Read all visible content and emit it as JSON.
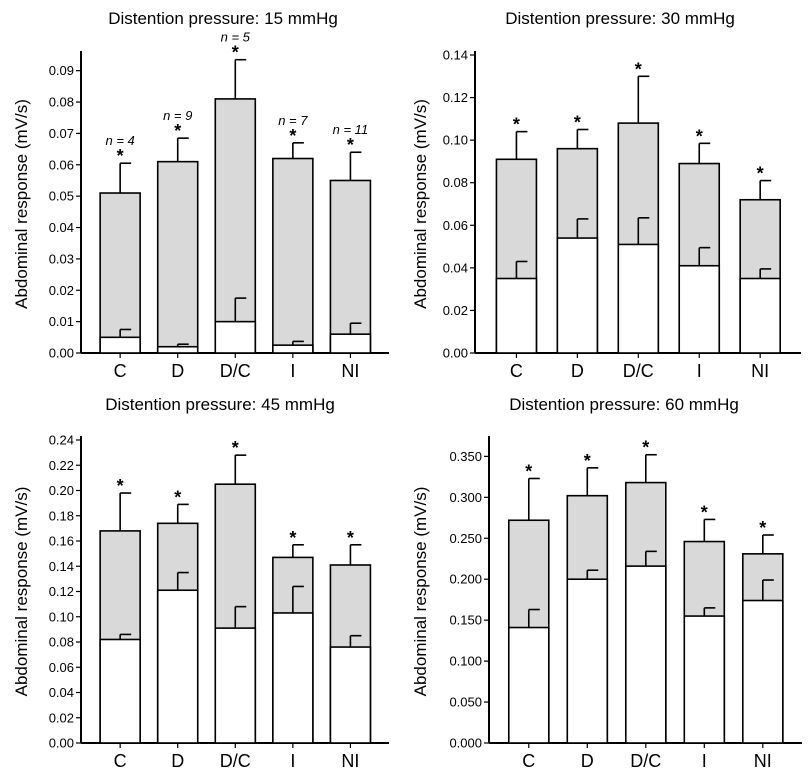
{
  "colors": {
    "stimulated_fill": "#d9d9d9",
    "baseline_fill": "#ffffff",
    "stroke": "#000000"
  },
  "chart_data": [
    {
      "type": "bar",
      "title": "Distention pressure: 15 mmHg",
      "ylabel": "Abdominal response (mV/s)",
      "categories": [
        "C",
        "D",
        "D/C",
        "I",
        "NI"
      ],
      "ylim": [
        0,
        0.095
      ],
      "yticks": [
        "0.00",
        "0.01",
        "0.02",
        "0.03",
        "0.04",
        "0.05",
        "0.06",
        "0.07",
        "0.08",
        "0.09"
      ],
      "sample_sizes": [
        "n = 4",
        "n = 9",
        "n = 5",
        "n = 7",
        "n = 11"
      ],
      "significance": [
        "*",
        "*",
        "*",
        "*",
        "*"
      ],
      "series": [
        {
          "values": [
            0.051,
            0.061,
            0.081,
            0.062,
            0.055
          ],
          "errors": [
            0.0095,
            0.0075,
            0.0125,
            0.005,
            0.009
          ]
        },
        {
          "values": [
            0.005,
            0.002,
            0.01,
            0.0025,
            0.006
          ],
          "errors": [
            0.0025,
            0.0008,
            0.0075,
            0.0012,
            0.0035
          ]
        }
      ]
    },
    {
      "type": "bar",
      "title": "Distention pressure: 30 mmHg",
      "ylabel": "Abdominal response (mV/s)",
      "categories": [
        "C",
        "D",
        "D/C",
        "I",
        "NI"
      ],
      "ylim": [
        0,
        0.14
      ],
      "yticks": [
        "0.00",
        "0.02",
        "0.04",
        "0.06",
        "0.08",
        "0.10",
        "0.12",
        "0.14"
      ],
      "significance": [
        "*",
        "*",
        "*",
        "*",
        "*"
      ],
      "series": [
        {
          "values": [
            0.091,
            0.096,
            0.108,
            0.089,
            0.072
          ],
          "errors": [
            0.013,
            0.009,
            0.022,
            0.0095,
            0.009
          ]
        },
        {
          "values": [
            0.035,
            0.054,
            0.051,
            0.041,
            0.035
          ],
          "errors": [
            0.008,
            0.009,
            0.0125,
            0.0085,
            0.0045
          ]
        }
      ]
    },
    {
      "type": "bar",
      "title": "Distention pressure: 45 mmHg",
      "ylabel": "Abdominal response (mV/s)",
      "categories": [
        "C",
        "D",
        "D/C",
        "I",
        "NI"
      ],
      "ylim": [
        0,
        0.24
      ],
      "yticks": [
        "0.00",
        "0.02",
        "0.04",
        "0.06",
        "0.08",
        "0.10",
        "0.12",
        "0.14",
        "0.16",
        "0.18",
        "0.20",
        "0.22",
        "0.24"
      ],
      "significance": [
        "*",
        "*",
        "*",
        "*",
        "*"
      ],
      "series": [
        {
          "values": [
            0.168,
            0.174,
            0.205,
            0.147,
            0.141
          ],
          "errors": [
            0.03,
            0.015,
            0.023,
            0.01,
            0.016
          ]
        },
        {
          "values": [
            0.082,
            0.121,
            0.091,
            0.103,
            0.076
          ],
          "errors": [
            0.004,
            0.014,
            0.017,
            0.021,
            0.009
          ]
        }
      ]
    },
    {
      "type": "bar",
      "title": "Distention pressure: 60 mmHg",
      "ylabel": "Abdominal response (mV/s)",
      "categories": [
        "C",
        "D",
        "D/C",
        "I",
        "NI"
      ],
      "ylim": [
        0,
        0.37
      ],
      "yticks": [
        "0.000",
        "0.050",
        "0.100",
        "0.150",
        "0.200",
        "0.250",
        "0.300",
        "0.350"
      ],
      "significance": [
        "*",
        "*",
        "*",
        "*",
        "*"
      ],
      "series": [
        {
          "values": [
            0.272,
            0.302,
            0.318,
            0.246,
            0.231
          ],
          "errors": [
            0.051,
            0.034,
            0.034,
            0.027,
            0.023
          ]
        },
        {
          "values": [
            0.141,
            0.2,
            0.216,
            0.155,
            0.174
          ],
          "errors": [
            0.022,
            0.011,
            0.018,
            0.01,
            0.025
          ]
        }
      ]
    }
  ]
}
